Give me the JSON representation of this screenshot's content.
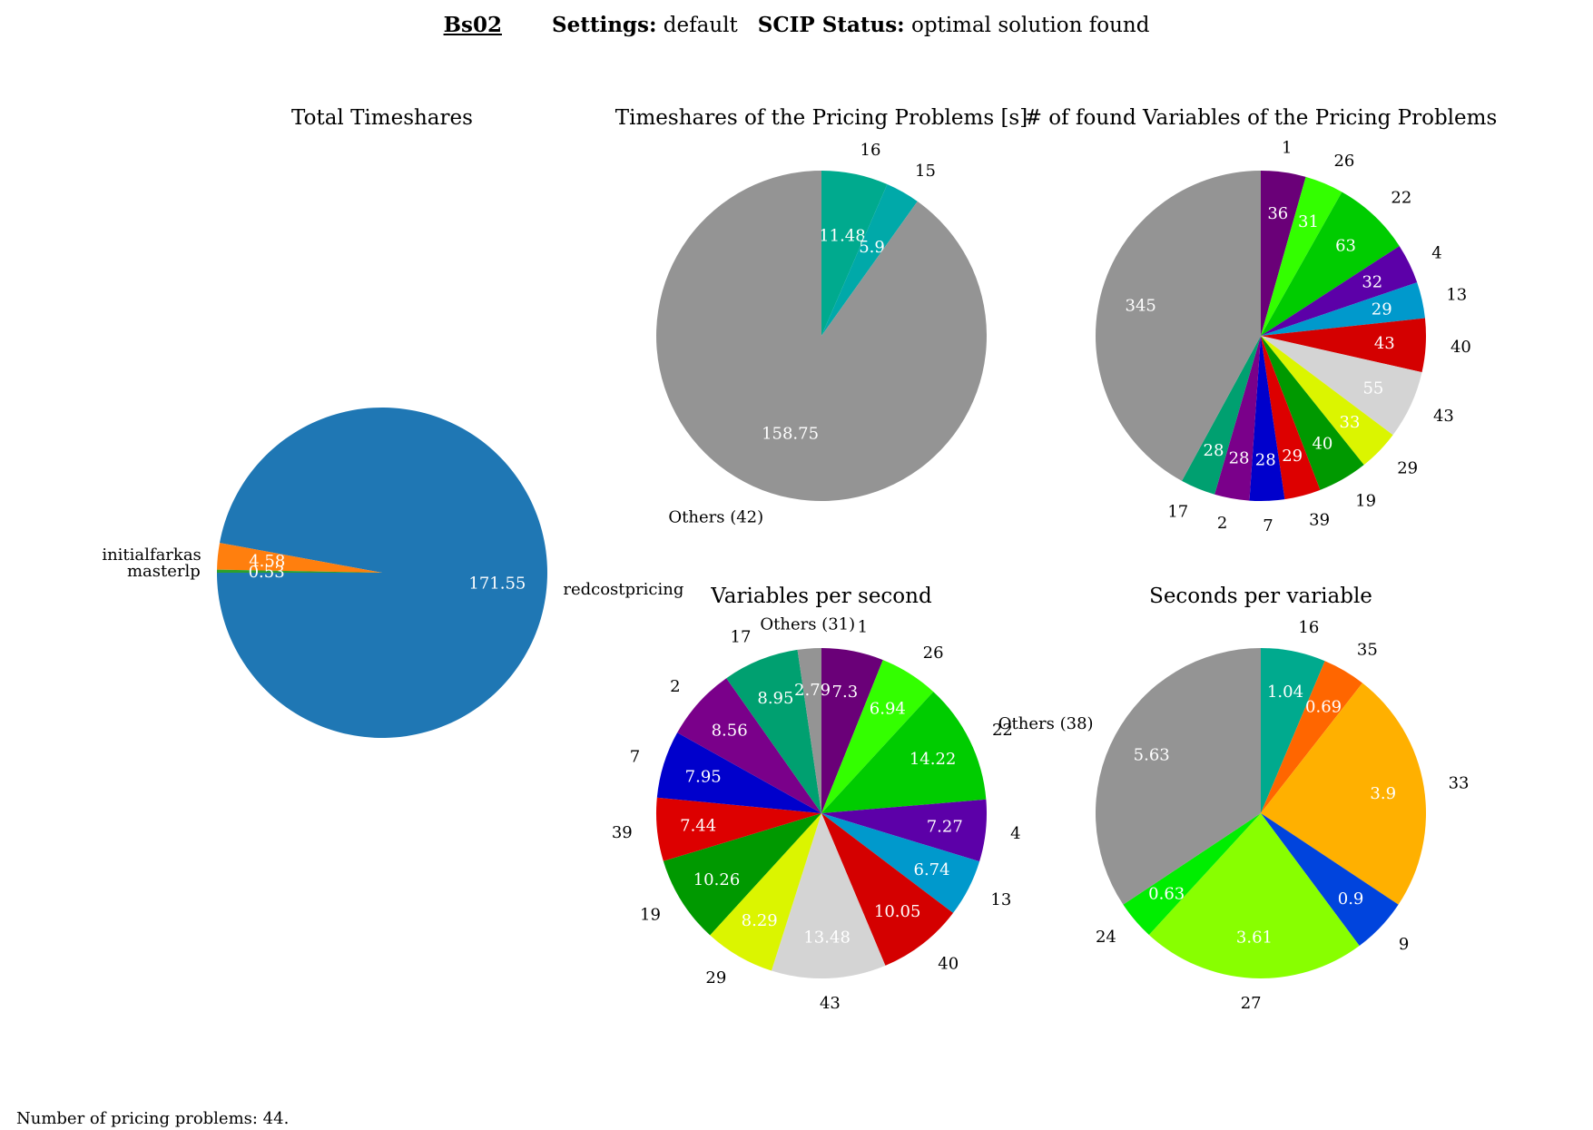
{
  "header": {
    "instance": "Bs02",
    "settings_label": "Settings:",
    "settings_value": "default",
    "status_label": "SCIP Status:",
    "status_value": "optimal solution found"
  },
  "footer": {
    "text": "Number of pricing problems: 44."
  },
  "chart_data": [
    {
      "type": "pie",
      "title": "Total Timeshares",
      "slices": [
        {
          "label": "redcostpricing",
          "value": 171.55,
          "color": "#1f77b4"
        },
        {
          "label": "initialfarkas",
          "value": 4.58,
          "color": "#ff7f0e"
        },
        {
          "label": "masterlp",
          "value": 0.53,
          "color": "#2ca02c"
        }
      ]
    },
    {
      "type": "pie",
      "title": "Timeshares of the Pricing Problems [s]",
      "slices": [
        {
          "label": "16",
          "value": 11.48,
          "color": "#00aa8e"
        },
        {
          "label": "15",
          "value": 5.9,
          "color": "#00a9a9"
        },
        {
          "label": "Others (42)",
          "value": 158.75,
          "color": "#949494"
        }
      ]
    },
    {
      "type": "pie",
      "title": "# of found Variables of the Pricing Problems",
      "slices": [
        {
          "label": "1",
          "value": 36,
          "color": "#6a0078"
        },
        {
          "label": "26",
          "value": 31,
          "color": "#33ff00"
        },
        {
          "label": "22",
          "value": 63,
          "color": "#00cc00"
        },
        {
          "label": "4",
          "value": 32,
          "color": "#5c00a8"
        },
        {
          "label": "13",
          "value": 29,
          "color": "#0099cc"
        },
        {
          "label": "40",
          "value": 43,
          "color": "#d40000"
        },
        {
          "label": "43",
          "value": 55,
          "color": "#d4d4d4"
        },
        {
          "label": "29",
          "value": 33,
          "color": "#dbf500"
        },
        {
          "label": "19",
          "value": 40,
          "color": "#009900"
        },
        {
          "label": "39",
          "value": 29,
          "color": "#dd0000"
        },
        {
          "label": "7",
          "value": 28,
          "color": "#0000cc"
        },
        {
          "label": "2",
          "value": 28,
          "color": "#7a008a"
        },
        {
          "label": "17",
          "value": 28,
          "color": "#00a070"
        },
        {
          "label": "",
          "value": 345,
          "color": "#949494"
        }
      ]
    },
    {
      "type": "pie",
      "title": "Variables per second",
      "slices": [
        {
          "label": "1",
          "value": 7.3,
          "color": "#6a0078"
        },
        {
          "label": "26",
          "value": 6.94,
          "color": "#33ff00"
        },
        {
          "label": "22",
          "value": 14.22,
          "color": "#00cc00"
        },
        {
          "label": "4",
          "value": 7.27,
          "color": "#5c00a8"
        },
        {
          "label": "13",
          "value": 6.74,
          "color": "#0099cc"
        },
        {
          "label": "40",
          "value": 10.05,
          "color": "#d40000"
        },
        {
          "label": "43",
          "value": 13.48,
          "color": "#d4d4d4"
        },
        {
          "label": "29",
          "value": 8.29,
          "color": "#dbf500"
        },
        {
          "label": "19",
          "value": 10.26,
          "color": "#009900"
        },
        {
          "label": "39",
          "value": 7.44,
          "color": "#dd0000"
        },
        {
          "label": "7",
          "value": 7.95,
          "color": "#0000cc"
        },
        {
          "label": "2",
          "value": 8.56,
          "color": "#7a008a"
        },
        {
          "label": "17",
          "value": 8.95,
          "color": "#00a070"
        },
        {
          "label": "Others (31)",
          "value": 2.79,
          "color": "#949494"
        }
      ]
    },
    {
      "type": "pie",
      "title": "Seconds per variable",
      "slices": [
        {
          "label": "16",
          "value": 1.04,
          "color": "#00aa8e"
        },
        {
          "label": "35",
          "value": 0.69,
          "color": "#ff6600"
        },
        {
          "label": "33",
          "value": 3.9,
          "color": "#ffb000"
        },
        {
          "label": "9",
          "value": 0.9,
          "color": "#0044dd"
        },
        {
          "label": "27",
          "value": 3.61,
          "color": "#88ff00"
        },
        {
          "label": "24",
          "value": 0.63,
          "color": "#00ee00"
        },
        {
          "label": "Others (38)",
          "value": 5.63,
          "color": "#949494"
        }
      ]
    }
  ]
}
